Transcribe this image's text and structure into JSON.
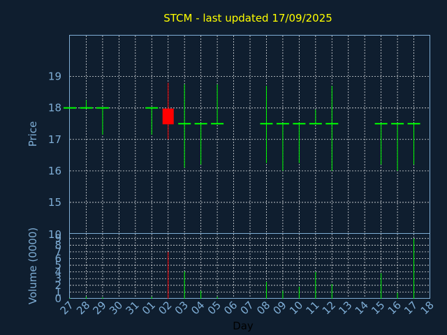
{
  "chart_data": {
    "type": "candlestick",
    "title": "STCM - last updated 17/09/2025",
    "xlabel": "Day",
    "x_ticks": [
      "27",
      "28",
      "29",
      "30",
      "31",
      "01",
      "02",
      "03",
      "04",
      "05",
      "06",
      "07",
      "08",
      "09",
      "10",
      "11",
      "12",
      "13",
      "14",
      "15",
      "16",
      "17",
      "18"
    ],
    "price_panel": {
      "ylabel": "Price",
      "ylim": [
        14.0,
        20.3
      ],
      "y_ticks": [
        15,
        16,
        17,
        18,
        19
      ],
      "grid": true
    },
    "volume_panel": {
      "ylabel": "Volume (0000)",
      "ylim": [
        0,
        9.7
      ],
      "y_ticks": [
        0,
        1,
        2,
        3,
        4,
        5,
        6,
        7,
        8,
        9
      ],
      "grid": true
    },
    "colors": {
      "up": "#00ff00",
      "down": "#ff0000",
      "background": "#0f1e2f",
      "title": "#ffff00",
      "axis": "#7faed6"
    },
    "candles": [
      {
        "day": "27",
        "open": 18.0,
        "high": 18.0,
        "low": 18.0,
        "close": 18.0,
        "volume": 0.1
      },
      {
        "day": "28",
        "open": 18.0,
        "high": 18.25,
        "low": 18.0,
        "close": 18.0,
        "volume": 0.3
      },
      {
        "day": "29",
        "open": 18.0,
        "high": 18.0,
        "low": 17.15,
        "close": 18.0,
        "volume": 0.2
      },
      {
        "day": "01",
        "open": 18.0,
        "high": 18.0,
        "low": 17.15,
        "close": 18.0,
        "volume": 0.3
      },
      {
        "day": "02",
        "open": 17.98,
        "high": 18.8,
        "low": 17.0,
        "close": 17.48,
        "volume": 7.0
      },
      {
        "day": "03",
        "open": 17.5,
        "high": 18.75,
        "low": 16.1,
        "close": 17.5,
        "volume": 4.1
      },
      {
        "day": "04",
        "open": 17.5,
        "high": 17.5,
        "low": 16.2,
        "close": 17.5,
        "volume": 1.2
      },
      {
        "day": "05",
        "open": 17.5,
        "high": 18.75,
        "low": 17.5,
        "close": 17.5,
        "volume": 0.3
      },
      {
        "day": "08",
        "open": 17.5,
        "high": 18.7,
        "low": 16.25,
        "close": 17.5,
        "volume": 2.5
      },
      {
        "day": "09",
        "open": 17.5,
        "high": 17.5,
        "low": 16.0,
        "close": 17.5,
        "volume": 1.2
      },
      {
        "day": "10",
        "open": 17.5,
        "high": 17.55,
        "low": 16.25,
        "close": 17.5,
        "volume": 1.8
      },
      {
        "day": "11",
        "open": 17.5,
        "high": 17.95,
        "low": 17.5,
        "close": 17.5,
        "volume": 4.0
      },
      {
        "day": "12",
        "open": 17.5,
        "high": 18.7,
        "low": 16.0,
        "close": 17.5,
        "volume": 2.2
      },
      {
        "day": "15",
        "open": 17.5,
        "high": 17.5,
        "low": 16.2,
        "close": 17.5,
        "volume": 3.8
      },
      {
        "day": "16",
        "open": 17.5,
        "high": 17.5,
        "low": 16.0,
        "close": 17.5,
        "volume": 0.9
      },
      {
        "day": "17",
        "open": 17.5,
        "high": 17.5,
        "low": 16.2,
        "close": 17.5,
        "volume": 9.0
      }
    ]
  }
}
